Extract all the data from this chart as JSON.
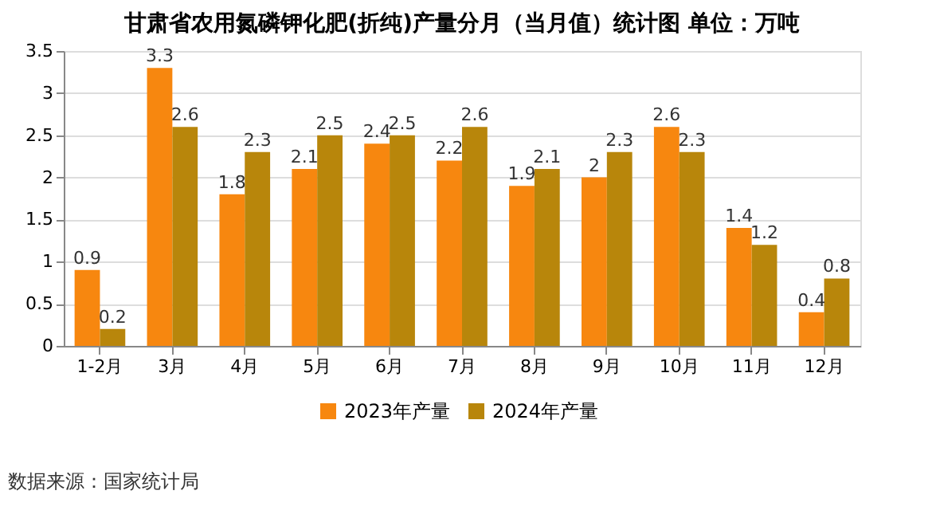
{
  "chart_data": {
    "type": "bar",
    "title": "甘肃省农用氮磷钾化肥(折纯)产量分月（当月值）统计图 单位：万吨",
    "categories": [
      "1-2月",
      "3月",
      "4月",
      "5月",
      "6月",
      "7月",
      "8月",
      "9月",
      "10月",
      "11月",
      "12月"
    ],
    "series": [
      {
        "name": "2023年产量",
        "color": "#f7870f",
        "values": [
          0.9,
          3.3,
          1.8,
          2.1,
          2.4,
          2.2,
          1.9,
          2,
          2.6,
          1.4,
          0.4
        ]
      },
      {
        "name": "2024年产量",
        "color": "#b8860b",
        "values": [
          0.2,
          2.6,
          2.3,
          2.5,
          2.5,
          2.6,
          2.1,
          2.3,
          2.3,
          1.2,
          0.8
        ]
      }
    ],
    "ylim": [
      0,
      3.5
    ],
    "yticks": [
      0,
      0.5,
      1,
      1.5,
      2,
      2.5,
      3,
      3.5
    ],
    "grid": "y",
    "legend": "bottom",
    "data_labels": true,
    "annotations": [
      "数据来源：国家统计局"
    ]
  }
}
